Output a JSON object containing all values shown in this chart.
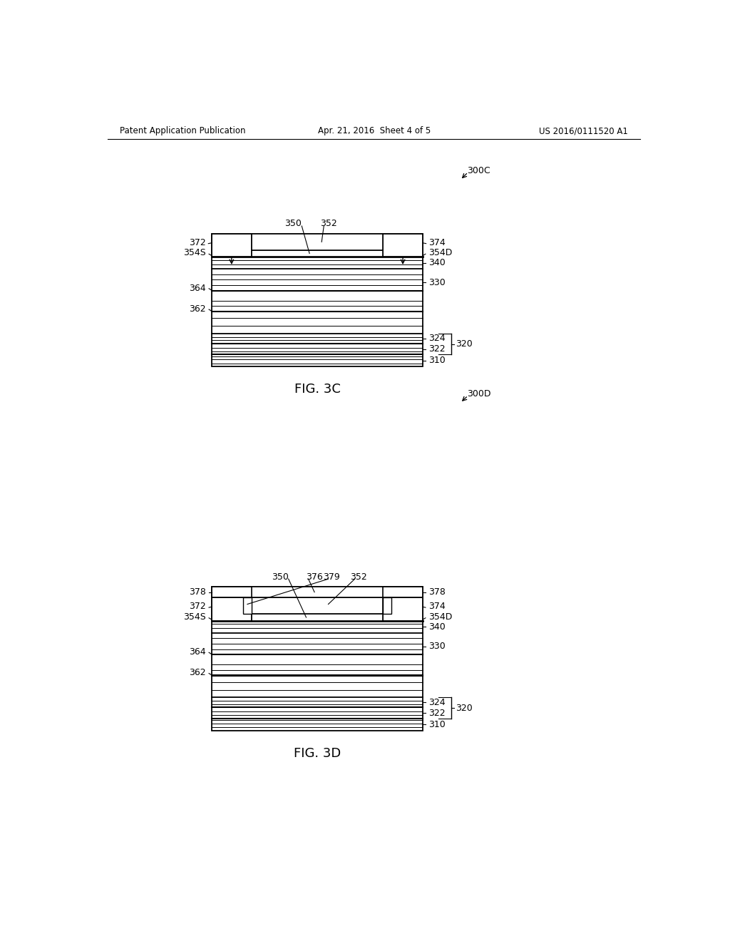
{
  "bg_color": "#ffffff",
  "header_left": "Patent Application Publication",
  "header_center": "Apr. 21, 2016  Sheet 4 of 5",
  "header_right": "US 2016/0111520 A1",
  "fig3c_label": "FIG. 3C",
  "fig3d_label": "FIG. 3D",
  "fig3c_ref": "300C",
  "fig3d_ref": "300D"
}
